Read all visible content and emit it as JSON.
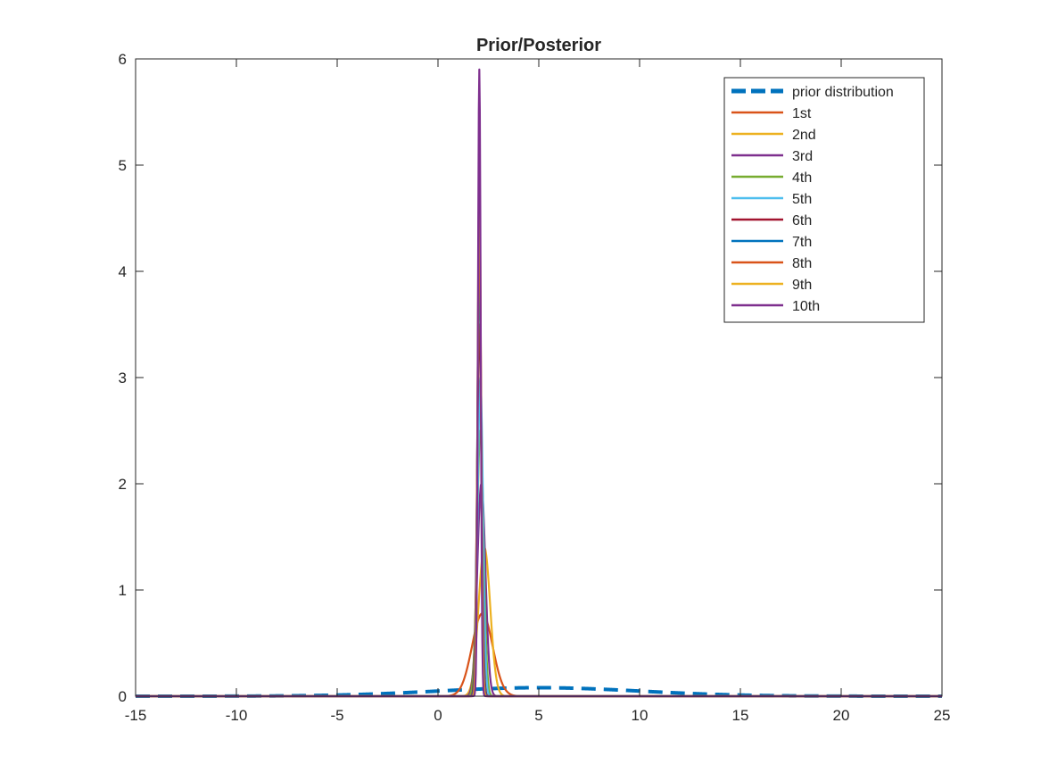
{
  "chart_data": {
    "type": "line",
    "title": "Prior/Posterior",
    "xlabel": "",
    "ylabel": "",
    "xlim": [
      -15,
      25
    ],
    "ylim": [
      0,
      6
    ],
    "xticks": [
      -15,
      -10,
      -5,
      0,
      5,
      10,
      15,
      20,
      25
    ],
    "yticks": [
      0,
      1,
      2,
      3,
      4,
      5,
      6
    ],
    "grid": false,
    "legend_location": "top-right",
    "series": [
      {
        "name": "prior distribution",
        "color": "#0072BD",
        "style": "dashed",
        "mean": 5,
        "std": 5,
        "peak": 0.08
      },
      {
        "name": "1st",
        "color": "#D95319",
        "style": "solid",
        "mean": 2.2,
        "std": 0.51,
        "peak": 0.78
      },
      {
        "name": "2nd",
        "color": "#EDB120",
        "style": "solid",
        "mean": 2.3,
        "std": 0.29,
        "peak": 1.4
      },
      {
        "name": "3rd",
        "color": "#7E2F8E",
        "style": "solid",
        "mean": 2.15,
        "std": 0.2,
        "peak": 2.0
      },
      {
        "name": "4th",
        "color": "#77AC30",
        "style": "solid",
        "mean": 2.1,
        "std": 0.16,
        "peak": 2.5
      },
      {
        "name": "5th",
        "color": "#4DBEEE",
        "style": "solid",
        "mean": 2.1,
        "std": 0.13,
        "peak": 3.0
      },
      {
        "name": "6th",
        "color": "#A2142F",
        "style": "solid",
        "mean": 2.05,
        "std": 0.11,
        "peak": 3.5
      },
      {
        "name": "7th",
        "color": "#0072BD",
        "style": "solid",
        "mean": 2.05,
        "std": 0.1,
        "peak": 4.0
      },
      {
        "name": "8th",
        "color": "#D95319",
        "style": "solid",
        "mean": 2.05,
        "std": 0.089,
        "peak": 4.5
      },
      {
        "name": "9th",
        "color": "#EDB120",
        "style": "solid",
        "mean": 2.05,
        "std": 0.08,
        "peak": 5.0
      },
      {
        "name": "10th",
        "color": "#7E2F8E",
        "style": "solid",
        "mean": 2.05,
        "std": 0.068,
        "peak": 5.9
      }
    ]
  }
}
